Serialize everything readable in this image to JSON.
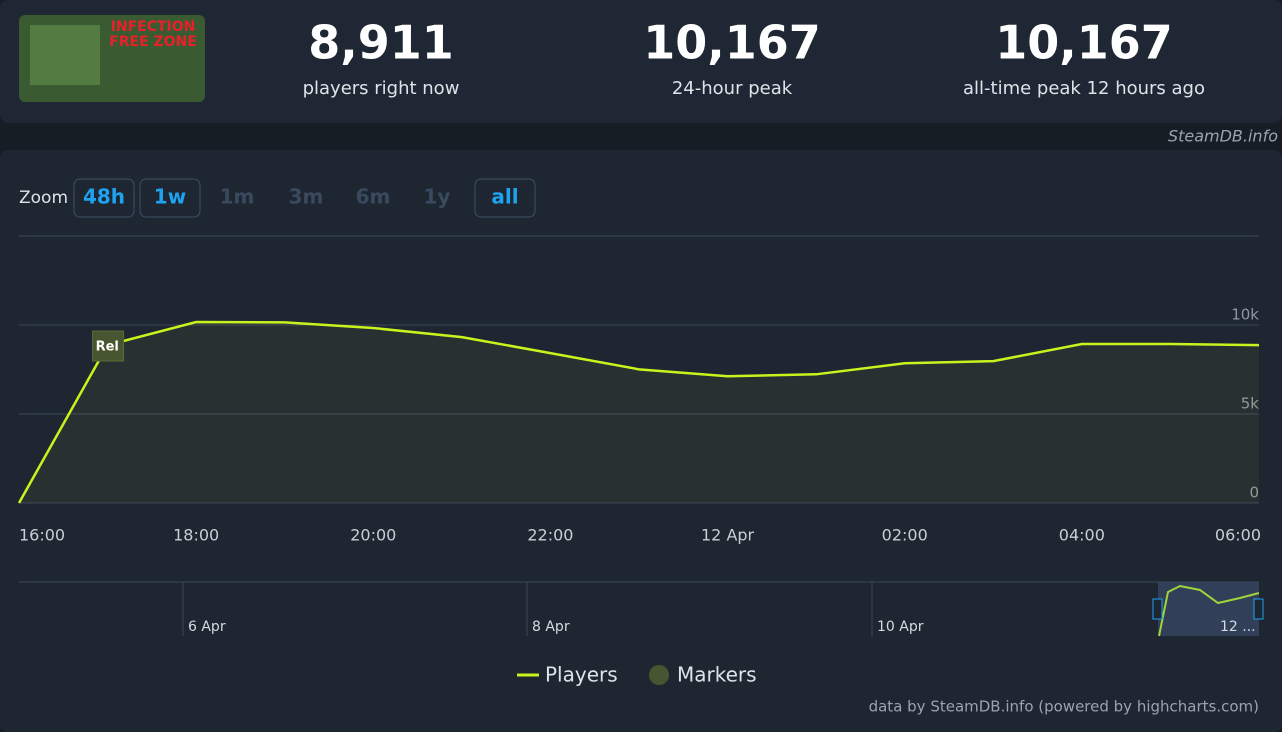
{
  "stats": [
    {
      "value": "8,911",
      "label": "players right now"
    },
    {
      "value": "10,167",
      "label": "24-hour peak"
    },
    {
      "value": "10,167",
      "label": "all-time peak 12 hours ago"
    }
  ],
  "game_image_text": [
    "INFECTION",
    "FREE ZONE"
  ],
  "watermark": "SteamDB.info",
  "zoom": {
    "label": "Zoom",
    "buttons": [
      "48h",
      "1w",
      "1m",
      "3m",
      "6m",
      "1y",
      "all"
    ]
  },
  "chart_data": {
    "type": "line",
    "categories": [
      "16:00",
      null,
      "18:00",
      null,
      "20:00",
      null,
      "22:00",
      null,
      "12 Apr",
      null,
      "02:00",
      null,
      "04:00",
      null,
      "06:00"
    ],
    "series": [
      {
        "name": "Players",
        "color": "#c9f31d",
        "values": [
          0,
          8870,
          10167,
          10150,
          9830,
          9320,
          8420,
          7510,
          7120,
          7230,
          7850,
          7970,
          8930,
          8930,
          8870
        ]
      }
    ],
    "markers_legend": {
      "name": "Markers",
      "color": "#475630"
    },
    "annotations": [
      {
        "text": "Rel"
      }
    ],
    "ylim": [
      0,
      15000
    ],
    "yticks": [
      0,
      {
        "value": 5000,
        "label": "5k"
      },
      {
        "value": 10000,
        "label": "10k"
      }
    ],
    "grid": true,
    "navigator_labels": [
      "6 Apr",
      "8 Apr",
      "10 Apr",
      "12 ..."
    ]
  },
  "credits": "data by SteamDB.info (powered by highcharts.com)"
}
